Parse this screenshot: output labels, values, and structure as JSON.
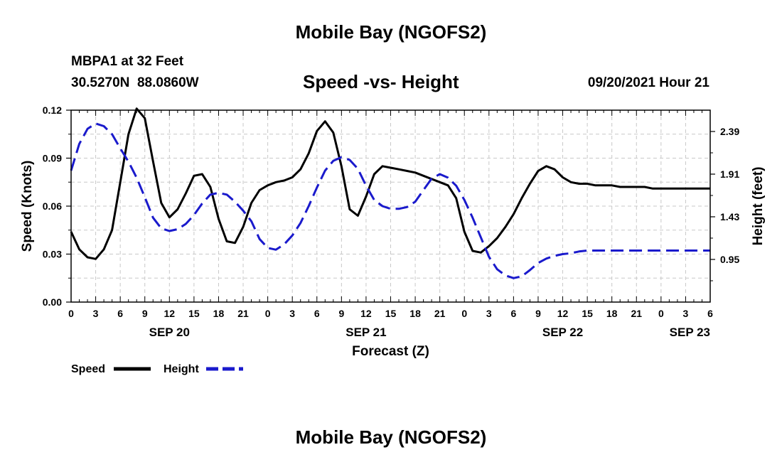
{
  "page": {
    "title_top": "Mobile Bay (NGOFS2)",
    "station_line1": "MBPA1 at 32 Feet",
    "station_line2": "30.5270N  88.0860W",
    "subtitle": "Speed -vs- Height",
    "run_time": "09/20/2021 Hour 21",
    "title_bottom": "Mobile Bay (NGOFS2)"
  },
  "chart_data": {
    "type": "line",
    "title": "Speed -vs- Height",
    "xlabel": "Forecast (Z)",
    "ylabel": "Speed (Knots)",
    "y2label": "Height (feet)",
    "grid": true,
    "xlim": [
      0,
      78
    ],
    "ylim": [
      0,
      0.12
    ],
    "y2lim": [
      0.47,
      2.63
    ],
    "x_tick_labels": [
      "0",
      "3",
      "6",
      "9",
      "12",
      "15",
      "18",
      "21",
      "0",
      "3",
      "6",
      "9",
      "12",
      "15",
      "18",
      "21",
      "0",
      "3",
      "6",
      "9",
      "12",
      "15",
      "18",
      "21",
      "0",
      "3",
      "6"
    ],
    "y_ticks": [
      0.0,
      0.03,
      0.06,
      0.09,
      0.12
    ],
    "y_tick_labels": [
      "0.00",
      "0.03",
      "0.06",
      "0.09",
      "0.12"
    ],
    "y2_ticks": [
      0.95,
      1.43,
      1.91,
      2.39
    ],
    "y2_tick_labels": [
      "0.95",
      "1.43",
      "1.91",
      "2.39"
    ],
    "date_labels": [
      {
        "label": "SEP 20",
        "x": 12
      },
      {
        "label": "SEP 21",
        "x": 36
      },
      {
        "label": "SEP 22",
        "x": 60
      },
      {
        "label": "SEP 23",
        "x": 78
      }
    ],
    "series": [
      {
        "name": "Speed",
        "axis": "left",
        "color": "#000000",
        "dash": "solid",
        "x": [
          0,
          1,
          2,
          3,
          4,
          5,
          6,
          7,
          8,
          9,
          10,
          11,
          12,
          13,
          14,
          15,
          16,
          17,
          18,
          19,
          20,
          21,
          22,
          23,
          24,
          25,
          26,
          27,
          28,
          29,
          30,
          31,
          32,
          33,
          34,
          35,
          36,
          37,
          38,
          39,
          40,
          41,
          42,
          43,
          44,
          45,
          46,
          47,
          48,
          49,
          50,
          51,
          52,
          53,
          54,
          55,
          56,
          57,
          58,
          59,
          60,
          61,
          62,
          63,
          64,
          65,
          66,
          67,
          68,
          69,
          70,
          71,
          72,
          73,
          74,
          75,
          76,
          77,
          78
        ],
        "values": [
          0.044,
          0.033,
          0.028,
          0.027,
          0.033,
          0.045,
          0.075,
          0.105,
          0.121,
          0.115,
          0.088,
          0.062,
          0.053,
          0.058,
          0.068,
          0.079,
          0.08,
          0.072,
          0.052,
          0.038,
          0.037,
          0.047,
          0.062,
          0.07,
          0.073,
          0.075,
          0.076,
          0.078,
          0.083,
          0.093,
          0.107,
          0.113,
          0.106,
          0.085,
          0.058,
          0.054,
          0.066,
          0.08,
          0.085,
          0.084,
          0.083,
          0.082,
          0.081,
          0.079,
          0.077,
          0.075,
          0.073,
          0.065,
          0.044,
          0.032,
          0.031,
          0.035,
          0.04,
          0.047,
          0.055,
          0.065,
          0.074,
          0.082,
          0.085,
          0.083,
          0.078,
          0.075,
          0.074,
          0.074,
          0.073,
          0.073,
          0.073,
          0.072,
          0.072,
          0.072,
          0.072,
          0.071,
          0.071,
          0.071,
          0.071,
          0.071,
          0.071,
          0.071,
          0.071
        ]
      },
      {
        "name": "Height",
        "axis": "right",
        "color": "#1a1acc",
        "dash": "dashed",
        "x": [
          0,
          1,
          2,
          3,
          4,
          5,
          6,
          7,
          8,
          9,
          10,
          11,
          12,
          13,
          14,
          15,
          16,
          17,
          18,
          19,
          20,
          21,
          22,
          23,
          24,
          25,
          26,
          27,
          28,
          29,
          30,
          31,
          32,
          33,
          34,
          35,
          36,
          37,
          38,
          39,
          40,
          41,
          42,
          43,
          44,
          45,
          46,
          47,
          48,
          49,
          50,
          51,
          52,
          53,
          54,
          55,
          56,
          57,
          58,
          59,
          60,
          61,
          62,
          63,
          64,
          65,
          66,
          67,
          68,
          69,
          70,
          71,
          72,
          73,
          74,
          75,
          76,
          77,
          78
        ],
        "values": [
          1.95,
          2.25,
          2.42,
          2.48,
          2.45,
          2.36,
          2.2,
          2.05,
          1.87,
          1.65,
          1.42,
          1.3,
          1.27,
          1.29,
          1.35,
          1.45,
          1.58,
          1.68,
          1.7,
          1.68,
          1.6,
          1.5,
          1.38,
          1.18,
          1.08,
          1.06,
          1.12,
          1.22,
          1.36,
          1.55,
          1.76,
          1.95,
          2.06,
          2.1,
          2.07,
          1.97,
          1.78,
          1.62,
          1.55,
          1.52,
          1.52,
          1.54,
          1.6,
          1.73,
          1.86,
          1.91,
          1.87,
          1.78,
          1.62,
          1.42,
          1.2,
          0.98,
          0.84,
          0.77,
          0.74,
          0.76,
          0.83,
          0.91,
          0.96,
          0.99,
          1.01,
          1.02,
          1.04,
          1.05,
          1.05,
          1.05,
          1.05,
          1.05,
          1.05,
          1.05,
          1.05,
          1.05,
          1.05,
          1.05,
          1.05,
          1.05,
          1.05,
          1.05,
          1.05
        ]
      }
    ],
    "legend": [
      {
        "label": "Speed",
        "color": "#000000",
        "dash": "solid"
      },
      {
        "label": "Height",
        "color": "#1a1acc",
        "dash": "dashed"
      }
    ]
  }
}
